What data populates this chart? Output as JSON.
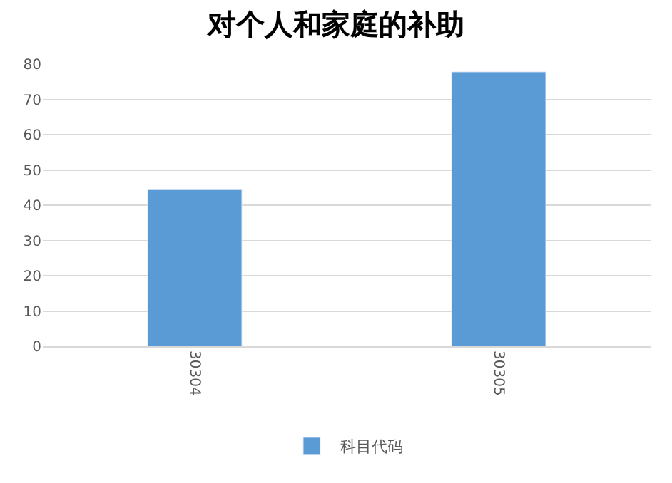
{
  "chart_data": {
    "type": "bar",
    "title": "对个人和家庭的补助",
    "categories": [
      "30304",
      "30305"
    ],
    "series": [
      {
        "name": "科目代码",
        "color": "#5b9bd5",
        "values": [
          44.4,
          77.8
        ]
      }
    ],
    "ylim": [
      0,
      80
    ],
    "yticks": [
      0,
      10,
      20,
      30,
      40,
      50,
      60,
      70,
      80
    ],
    "grid": "y",
    "legend": "bottom"
  }
}
